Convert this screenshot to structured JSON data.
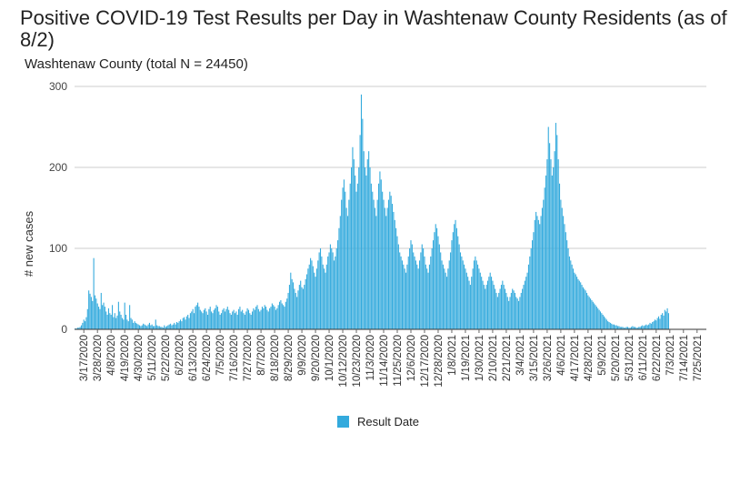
{
  "chart_data": {
    "type": "bar",
    "title": "Positive COVID-19 Test Results per Day in Washtenaw County Residents (as of 8/2)",
    "subtitle": "Washtenaw County (total N = 24450)",
    "ylabel": "# new cases",
    "xlabel": "",
    "ylim": [
      0,
      300
    ],
    "yticks": [
      0,
      100,
      200,
      300
    ],
    "grid": true,
    "legend_position": "bottom",
    "color": "#33aadd",
    "x_start": "3/10/2020",
    "x_end": "8/1/2021",
    "xtick_labels": [
      "3/17/2020",
      "3/28/2020",
      "4/8/2020",
      "4/19/2020",
      "4/30/2020",
      "5/11/2020",
      "5/22/2020",
      "6/2/2020",
      "6/13/2020",
      "6/24/2020",
      "7/5/2020",
      "7/16/2020",
      "7/27/2020",
      "8/7/2020",
      "8/18/2020",
      "8/29/2020",
      "9/9/2020",
      "9/20/2020",
      "10/1/2020",
      "10/12/2020",
      "10/23/2020",
      "11/3/2020",
      "11/14/2020",
      "11/25/2020",
      "12/6/2020",
      "12/17/2020",
      "12/28/2020",
      "1/8/2021",
      "1/19/2021",
      "1/30/2021",
      "2/10/2021",
      "2/21/2021",
      "3/4/2021",
      "3/15/2021",
      "3/26/2021",
      "4/6/2021",
      "4/17/2021",
      "4/28/2021",
      "5/9/2021",
      "5/20/2021",
      "5/31/2021",
      "6/11/2021",
      "6/22/2021",
      "7/3/2021",
      "7/14/2021",
      "7/25/2021"
    ],
    "series": [
      {
        "name": "Result Date",
        "values": [
          1,
          1,
          2,
          2,
          3,
          5,
          8,
          12,
          10,
          15,
          25,
          48,
          44,
          40,
          35,
          88,
          42,
          38,
          32,
          28,
          25,
          45,
          30,
          33,
          28,
          22,
          18,
          26,
          20,
          18,
          30,
          15,
          20,
          14,
          17,
          34,
          22,
          18,
          14,
          12,
          33,
          18,
          12,
          10,
          30,
          14,
          12,
          8,
          10,
          8,
          7,
          6,
          5,
          4,
          5,
          7,
          6,
          5,
          4,
          6,
          8,
          5,
          6,
          4,
          4,
          12,
          5,
          4,
          4,
          3,
          3,
          2,
          5,
          3,
          4,
          5,
          6,
          7,
          5,
          6,
          8,
          6,
          9,
          8,
          10,
          12,
          10,
          14,
          15,
          12,
          16,
          18,
          14,
          20,
          22,
          25,
          20,
          28,
          30,
          33,
          28,
          24,
          22,
          20,
          24,
          26,
          22,
          18,
          25,
          28,
          22,
          20,
          24,
          26,
          30,
          28,
          22,
          18,
          20,
          24,
          26,
          22,
          25,
          28,
          24,
          20,
          18,
          22,
          24,
          20,
          22,
          18,
          25,
          28,
          22,
          24,
          20,
          18,
          22,
          26,
          24,
          20,
          18,
          22,
          26,
          24,
          28,
          30,
          25,
          22,
          24,
          28,
          26,
          30,
          28,
          24,
          22,
          26,
          28,
          32,
          30,
          28,
          24,
          26,
          30,
          34,
          36,
          32,
          30,
          28,
          34,
          38,
          45,
          55,
          70,
          62,
          58,
          50,
          45,
          40,
          48,
          55,
          60,
          52,
          50,
          55,
          62,
          68,
          75,
          80,
          88,
          85,
          78,
          70,
          65,
          75,
          85,
          95,
          100,
          90,
          80,
          75,
          70,
          80,
          90,
          95,
          105,
          100,
          95,
          85,
          90,
          100,
          110,
          125,
          140,
          160,
          175,
          185,
          170,
          150,
          140,
          160,
          180,
          200,
          225,
          210,
          190,
          170,
          180,
          200,
          240,
          290,
          260,
          220,
          200,
          190,
          210,
          220,
          200,
          180,
          170,
          160,
          150,
          140,
          160,
          180,
          195,
          185,
          170,
          160,
          150,
          140,
          150,
          160,
          170,
          165,
          155,
          145,
          135,
          125,
          115,
          105,
          95,
          90,
          85,
          80,
          75,
          70,
          80,
          90,
          100,
          110,
          105,
          95,
          90,
          85,
          80,
          75,
          85,
          95,
          105,
          100,
          90,
          80,
          75,
          70,
          80,
          90,
          100,
          110,
          120,
          130,
          125,
          115,
          105,
          95,
          85,
          80,
          75,
          70,
          65,
          75,
          85,
          95,
          110,
          120,
          130,
          135,
          125,
          115,
          105,
          95,
          90,
          85,
          80,
          75,
          70,
          65,
          60,
          55,
          65,
          75,
          85,
          90,
          85,
          80,
          75,
          70,
          65,
          60,
          55,
          50,
          55,
          60,
          65,
          70,
          65,
          60,
          55,
          50,
          45,
          40,
          45,
          50,
          55,
          60,
          55,
          50,
          45,
          40,
          35,
          40,
          45,
          50,
          48,
          45,
          40,
          38,
          35,
          40,
          45,
          50,
          55,
          60,
          65,
          70,
          80,
          90,
          100,
          110,
          120,
          135,
          145,
          140,
          135,
          130,
          140,
          150,
          160,
          175,
          190,
          210,
          250,
          230,
          210,
          190,
          200,
          220,
          255,
          240,
          210,
          180,
          160,
          150,
          140,
          130,
          120,
          110,
          100,
          90,
          85,
          80,
          75,
          70,
          68,
          65,
          62,
          60,
          58,
          55,
          52,
          50,
          48,
          45,
          42,
          40,
          38,
          36,
          34,
          32,
          30,
          28,
          26,
          24,
          22,
          20,
          18,
          16,
          14,
          12,
          10,
          9,
          8,
          7,
          6,
          6,
          5,
          5,
          4,
          4,
          3,
          3,
          3,
          2,
          2,
          3,
          3,
          2,
          2,
          3,
          4,
          3,
          3,
          2,
          2,
          3,
          3,
          4,
          5,
          4,
          5,
          6,
          5,
          6,
          8,
          7,
          9,
          10,
          12,
          11,
          14,
          16,
          13,
          18,
          20,
          17,
          24,
          22,
          26,
          20
        ]
      }
    ]
  }
}
